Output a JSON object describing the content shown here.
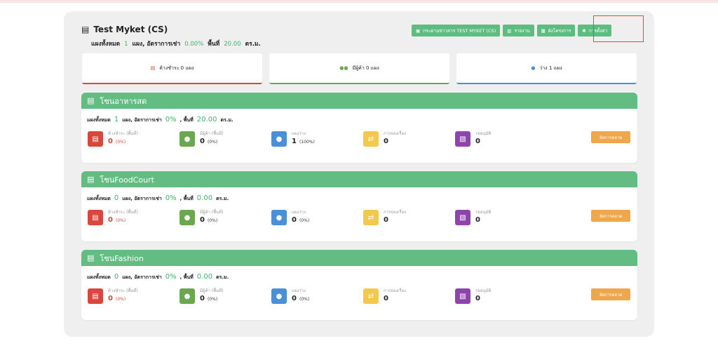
{
  "header": {
    "title": "Test Myket (CS)",
    "sub_total_label": "แผงทั้งหมด",
    "sub_total": "1",
    "sub_rate_label": "แผง, อัตราการเช่า",
    "sub_rate": "0.00%",
    "sub_area_label": "พื้นที่",
    "sub_area": "20.00",
    "sub_unit": "ตร.ม."
  },
  "toolbar": {
    "board": "กระดานข่าวสาร TEST MYKET (CS)",
    "report": "รายงาน",
    "layout": "ผังโครงการ",
    "settings": "การตั้งค่า"
  },
  "summary": {
    "overdue": "ค้างชำระ 0 แผง",
    "tenants": "มีผู้ค้า 0 แผง",
    "vacant": "ว่าง 1 แผง"
  },
  "zones": [
    {
      "name": "โซนอาหารสด",
      "total_label": "แผงทั้งหมด",
      "total": "1",
      "rate_label": "แผง, อัตราการเช่า",
      "rate": "0%",
      "area_label": ", พื้นที่",
      "area": "20.00",
      "unit": "ตร.ม.",
      "stats": [
        {
          "label": "ค้างชำระ (พื้นที่)",
          "value": "0",
          "pct": "(0%)"
        },
        {
          "label": "มีผู้ค้า (พื้นที่)",
          "value": "0",
          "pct": "(0%)"
        },
        {
          "label": "แผงว่าง",
          "value": "1",
          "pct": "(100%)"
        },
        {
          "label": "การจองเรื่อง",
          "value": "0"
        },
        {
          "label": "รออนุมัติ",
          "value": "0"
        }
      ],
      "market_btn": "จัดการตลาด"
    },
    {
      "name": "โซนFoodCourt",
      "total_label": "แผงทั้งหมด",
      "total": "0",
      "rate_label": "แผง, อัตราการเช่า",
      "rate": "0%",
      "area_label": ", พื้นที่",
      "area": "0.00",
      "unit": "ตร.ม.",
      "stats": [
        {
          "label": "ค้างชำระ (พื้นที่)",
          "value": "0",
          "pct": "(0%)"
        },
        {
          "label": "มีผู้ค้า (พื้นที่)",
          "value": "0",
          "pct": "(0%)"
        },
        {
          "label": "แผงว่าง",
          "value": "0",
          "pct": "(0%)"
        },
        {
          "label": "การจองเรื่อง",
          "value": "0"
        },
        {
          "label": "รออนุมัติ",
          "value": "0"
        }
      ],
      "market_btn": "จัดการตลาด"
    },
    {
      "name": "โซนFashion",
      "total_label": "แผงทั้งหมด",
      "total": "0",
      "rate_label": "แผง, อัตราการเช่า",
      "rate": "0%",
      "area_label": ", พื้นที่",
      "area": "0.00",
      "unit": "ตร.ม.",
      "stats": [
        {
          "label": "ค้างชำระ (พื้นที่)",
          "value": "0",
          "pct": "(0%)"
        },
        {
          "label": "มีผู้ค้า (พื้นที่)",
          "value": "0",
          "pct": "(0%)"
        },
        {
          "label": "แผงว่าง",
          "value": "0",
          "pct": "(0%)"
        },
        {
          "label": "การจองเรื่อง",
          "value": "0"
        },
        {
          "label": "รออนุมัติ",
          "value": "0"
        }
      ],
      "market_btn": "จัดการตลาด"
    }
  ],
  "colors": {
    "green": "#63bd83",
    "red": "#d9463b",
    "olive": "#6aa84f",
    "blue": "#4a90d9",
    "yellow": "#f2c94c",
    "purple": "#8e44ad",
    "orange": "#f0a64b"
  }
}
